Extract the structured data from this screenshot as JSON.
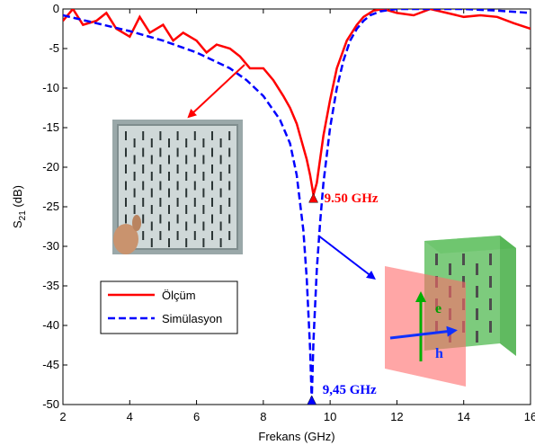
{
  "chart_data": {
    "type": "line",
    "xlabel": "Frekans (GHz)",
    "ylabel_main": "S",
    "ylabel_sub": "21",
    "ylabel_unit": " (dB)",
    "xlim": [
      2,
      16
    ],
    "ylim": [
      -50,
      0
    ],
    "xticks": [
      2,
      4,
      6,
      8,
      10,
      12,
      14,
      16
    ],
    "yticks": [
      0,
      -5,
      -10,
      -15,
      -20,
      -25,
      -30,
      -35,
      -40,
      -45,
      -50
    ],
    "legend_position": "lower-left",
    "series": [
      {
        "name": "Ölçüm",
        "color": "#ff0000",
        "style": "solid",
        "x": [
          2.0,
          2.3,
          2.6,
          3.0,
          3.3,
          3.6,
          4.0,
          4.3,
          4.6,
          5.0,
          5.3,
          5.6,
          6.0,
          6.3,
          6.6,
          7.0,
          7.3,
          7.6,
          8.0,
          8.3,
          8.6,
          8.8,
          9.0,
          9.1,
          9.2,
          9.3,
          9.4,
          9.5,
          9.6,
          9.7,
          9.8,
          10.0,
          10.2,
          10.5,
          10.8,
          11.0,
          11.3,
          11.6,
          12.0,
          12.5,
          13.0,
          13.5,
          14.0,
          14.5,
          15.0,
          15.5,
          16.0
        ],
        "y": [
          -1.5,
          0.0,
          -2.0,
          -1.5,
          -0.5,
          -2.5,
          -3.5,
          -1.0,
          -3.0,
          -2.0,
          -4.0,
          -3.0,
          -4.0,
          -5.5,
          -4.5,
          -5.0,
          -6.0,
          -7.5,
          -7.5,
          -9.0,
          -11.0,
          -12.5,
          -14.5,
          -16.0,
          -17.5,
          -19.0,
          -21.0,
          -23.5,
          -22.0,
          -19.0,
          -16.0,
          -11.5,
          -7.5,
          -4.0,
          -2.0,
          -1.0,
          -0.2,
          0.0,
          -0.5,
          -0.8,
          0.0,
          -0.5,
          -1.0,
          -0.8,
          -1.0,
          -1.8,
          -2.5
        ]
      },
      {
        "name": "Simülasyon",
        "color": "#0000ff",
        "style": "dashed",
        "x": [
          2.0,
          3.0,
          4.0,
          5.0,
          6.0,
          7.0,
          7.5,
          8.0,
          8.5,
          8.8,
          9.0,
          9.2,
          9.3,
          9.4,
          9.45,
          9.5,
          9.6,
          9.7,
          9.8,
          9.9,
          10.0,
          10.2,
          10.4,
          10.6,
          10.8,
          11.0,
          11.2,
          11.5,
          12.0,
          13.0,
          14.0,
          15.0,
          16.0
        ],
        "y": [
          -0.8,
          -1.8,
          -2.8,
          -4.0,
          -5.5,
          -7.5,
          -9.0,
          -11.0,
          -14.0,
          -17.0,
          -21.0,
          -28.0,
          -34.0,
          -43.0,
          -49.5,
          -42.0,
          -33.0,
          -27.0,
          -22.0,
          -18.5,
          -15.0,
          -10.0,
          -6.5,
          -4.0,
          -2.5,
          -1.5,
          -0.8,
          -0.3,
          0.0,
          0.0,
          0.0,
          -0.2,
          -0.5
        ]
      }
    ],
    "markers": [
      {
        "x": 9.5,
        "y": -24,
        "color": "#ff0000",
        "label": "9.50 GHz",
        "label_color": "#ff0000"
      },
      {
        "x": 9.45,
        "y": -50,
        "color": "#0000ff",
        "label": "9,45 GHz",
        "label_color": "#0000ff"
      }
    ],
    "insets": [
      {
        "name": "measured-sample-photo",
        "arrow_color": "#ff0000"
      },
      {
        "name": "metamaterial-simulation-model",
        "arrow_color": "#0000ff",
        "labels": [
          "e",
          "h"
        ]
      }
    ]
  }
}
